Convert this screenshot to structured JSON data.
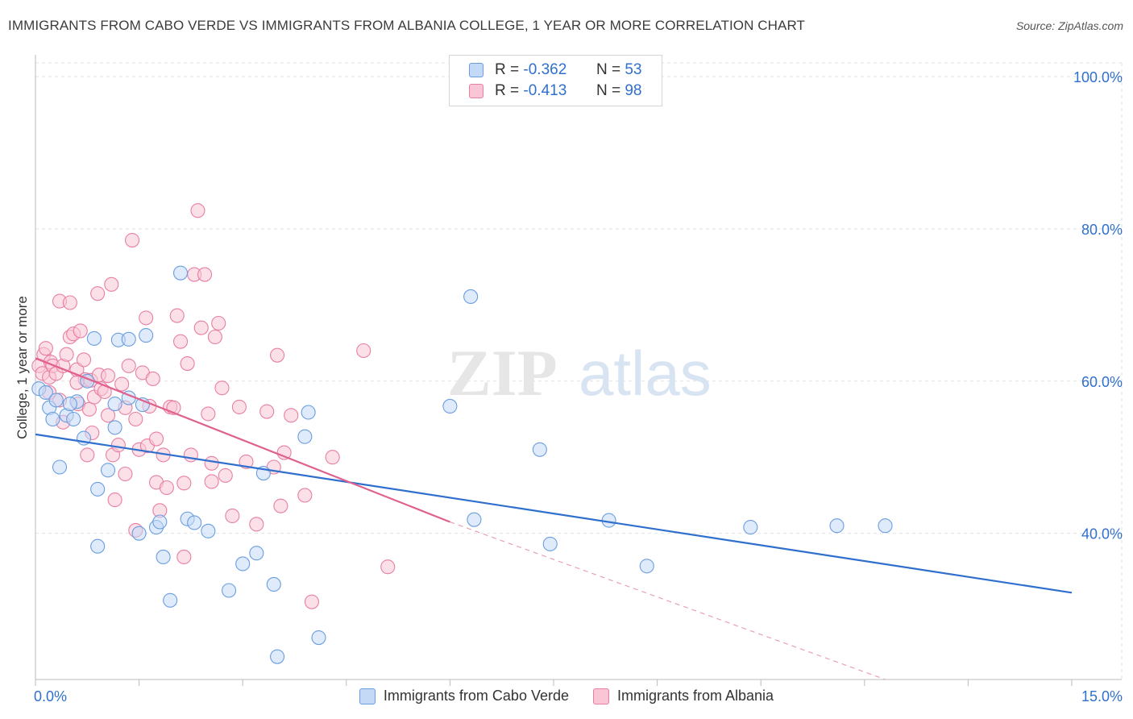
{
  "chart_data": {
    "type": "scatter",
    "title": "IMMIGRANTS FROM CABO VERDE VS IMMIGRANTS FROM ALBANIA COLLEGE, 1 YEAR OR MORE CORRELATION CHART",
    "source": "Source: ZipAtlas.com",
    "ylabel": "College, 1 year or more",
    "xlim": [
      0,
      15
    ],
    "ylim": [
      20.8,
      101.8
    ],
    "x_tick_labels": [
      "0.0%",
      "15.0%"
    ],
    "y_ticks": [
      {
        "value": 100,
        "label": "100.0%"
      },
      {
        "value": 80,
        "label": "80.0%"
      },
      {
        "value": 60,
        "label": "60.0%"
      },
      {
        "value": 40,
        "label": "40.0%"
      }
    ],
    "grid": true,
    "legend_position": "top-center",
    "watermark": "ZIPatlas",
    "series": [
      {
        "name": "Immigrants from Cabo Verde",
        "color": "#6a9ee0",
        "fill": "#c4d9f5",
        "R": "-0.362",
        "N": "53",
        "trend": {
          "x0": 0,
          "y0": 53,
          "x1": 15,
          "y1": 32.2,
          "dashed_after": null
        },
        "points": [
          [
            0.05,
            59
          ],
          [
            0.15,
            58.5
          ],
          [
            0.2,
            56.5
          ],
          [
            0.3,
            57.5
          ],
          [
            0.25,
            55
          ],
          [
            0.35,
            48.7
          ],
          [
            0.45,
            55.5
          ],
          [
            0.55,
            55
          ],
          [
            0.6,
            57.3
          ],
          [
            0.5,
            57
          ],
          [
            0.7,
            52.5
          ],
          [
            0.75,
            60
          ],
          [
            0.85,
            65.6
          ],
          [
            0.9,
            45.8
          ],
          [
            0.9,
            38.3
          ],
          [
            1.05,
            48.3
          ],
          [
            1.15,
            53.9
          ],
          [
            1.15,
            57
          ],
          [
            1.2,
            65.4
          ],
          [
            1.35,
            65.5
          ],
          [
            1.35,
            57.8
          ],
          [
            1.5,
            40
          ],
          [
            1.55,
            56.9
          ],
          [
            1.6,
            66
          ],
          [
            1.75,
            40.8
          ],
          [
            1.8,
            41.5
          ],
          [
            1.85,
            36.9
          ],
          [
            1.95,
            31.2
          ],
          [
            2.1,
            74.2
          ],
          [
            2.2,
            41.9
          ],
          [
            2.3,
            41.4
          ],
          [
            2.5,
            40.3
          ],
          [
            2.8,
            32.5
          ],
          [
            3.0,
            36
          ],
          [
            3.2,
            37.4
          ],
          [
            3.3,
            47.9
          ],
          [
            3.45,
            33.3
          ],
          [
            3.5,
            23.8
          ],
          [
            3.9,
            52.7
          ],
          [
            3.95,
            55.9
          ],
          [
            4.1,
            26.3
          ],
          [
            6.0,
            56.7
          ],
          [
            6.3,
            71.1
          ],
          [
            6.35,
            41.8
          ],
          [
            7.3,
            51
          ],
          [
            7.45,
            38.6
          ],
          [
            8.3,
            41.7
          ],
          [
            8.85,
            35.7
          ],
          [
            10.35,
            40.8
          ],
          [
            11.6,
            41
          ],
          [
            12.3,
            41
          ]
        ]
      },
      {
        "name": "Immigrants from Albania",
        "color": "#e87fa3",
        "fill": "#f9c6d6",
        "R": "-0.413",
        "N": "98",
        "trend": {
          "x0": 0,
          "y0": 63,
          "x1": 6.0,
          "y1": 41.5,
          "dash_x1": 12.3,
          "dash_y1": 20.8
        },
        "points": [
          [
            0.05,
            62
          ],
          [
            0.1,
            61
          ],
          [
            0.12,
            63.5
          ],
          [
            0.15,
            64.3
          ],
          [
            0.2,
            60.5
          ],
          [
            0.22,
            62.5
          ],
          [
            0.25,
            62
          ],
          [
            0.3,
            61
          ],
          [
            0.35,
            57.5
          ],
          [
            0.35,
            70.5
          ],
          [
            0.4,
            62
          ],
          [
            0.45,
            63.5
          ],
          [
            0.5,
            65.8
          ],
          [
            0.5,
            70.3
          ],
          [
            0.55,
            66.2
          ],
          [
            0.6,
            61.5
          ],
          [
            0.62,
            57
          ],
          [
            0.65,
            66.6
          ],
          [
            0.7,
            62.8
          ],
          [
            0.72,
            60.2
          ],
          [
            0.75,
            50.3
          ],
          [
            0.78,
            56.3
          ],
          [
            0.8,
            60.1
          ],
          [
            0.82,
            53.2
          ],
          [
            0.85,
            57.9
          ],
          [
            0.9,
            71.5
          ],
          [
            0.92,
            60.8
          ],
          [
            0.95,
            59
          ],
          [
            1.0,
            58.6
          ],
          [
            1.05,
            55.5
          ],
          [
            1.05,
            60.7
          ],
          [
            1.1,
            72.7
          ],
          [
            1.12,
            50.3
          ],
          [
            1.15,
            44.4
          ],
          [
            1.2,
            51.6
          ],
          [
            1.25,
            59.6
          ],
          [
            1.3,
            56.5
          ],
          [
            1.3,
            47.8
          ],
          [
            1.35,
            62
          ],
          [
            1.4,
            78.5
          ],
          [
            1.45,
            55
          ],
          [
            1.45,
            40.4
          ],
          [
            1.5,
            51
          ],
          [
            1.55,
            61.1
          ],
          [
            1.6,
            68.3
          ],
          [
            1.62,
            51.5
          ],
          [
            1.65,
            56.7
          ],
          [
            1.7,
            60.3
          ],
          [
            1.75,
            52.4
          ],
          [
            1.75,
            46.7
          ],
          [
            1.8,
            43
          ],
          [
            1.85,
            50.3
          ],
          [
            1.9,
            46
          ],
          [
            1.95,
            56.6
          ],
          [
            2.0,
            56.5
          ],
          [
            2.05,
            68.6
          ],
          [
            2.1,
            65.2
          ],
          [
            2.15,
            46.6
          ],
          [
            2.2,
            62.3
          ],
          [
            2.25,
            50.3
          ],
          [
            2.3,
            74
          ],
          [
            2.35,
            82.4
          ],
          [
            2.4,
            67
          ],
          [
            2.45,
            74
          ],
          [
            2.5,
            55.7
          ],
          [
            2.55,
            46.8
          ],
          [
            2.55,
            49.2
          ],
          [
            2.6,
            65.8
          ],
          [
            2.65,
            67.6
          ],
          [
            2.7,
            59.1
          ],
          [
            2.75,
            47.6
          ],
          [
            2.85,
            42.3
          ],
          [
            2.95,
            56.6
          ],
          [
            3.05,
            49.4
          ],
          [
            3.2,
            41.2
          ],
          [
            3.35,
            56
          ],
          [
            3.45,
            48.7
          ],
          [
            3.5,
            63.4
          ],
          [
            3.55,
            43.6
          ],
          [
            3.6,
            50.6
          ],
          [
            3.7,
            55.5
          ],
          [
            3.9,
            45
          ],
          [
            4.0,
            31
          ],
          [
            4.3,
            50
          ],
          [
            4.75,
            64
          ],
          [
            5.1,
            35.6
          ],
          [
            2.15,
            36.9
          ],
          [
            0.4,
            54.6
          ],
          [
            0.6,
            59.8
          ],
          [
            0.2,
            58.5
          ]
        ]
      }
    ]
  },
  "legend": {
    "r_label": "R =",
    "n_label": "N =",
    "rows": [
      {
        "r": "-0.362",
        "n": "53"
      },
      {
        "r": "-0.413",
        "n": "98"
      }
    ]
  }
}
